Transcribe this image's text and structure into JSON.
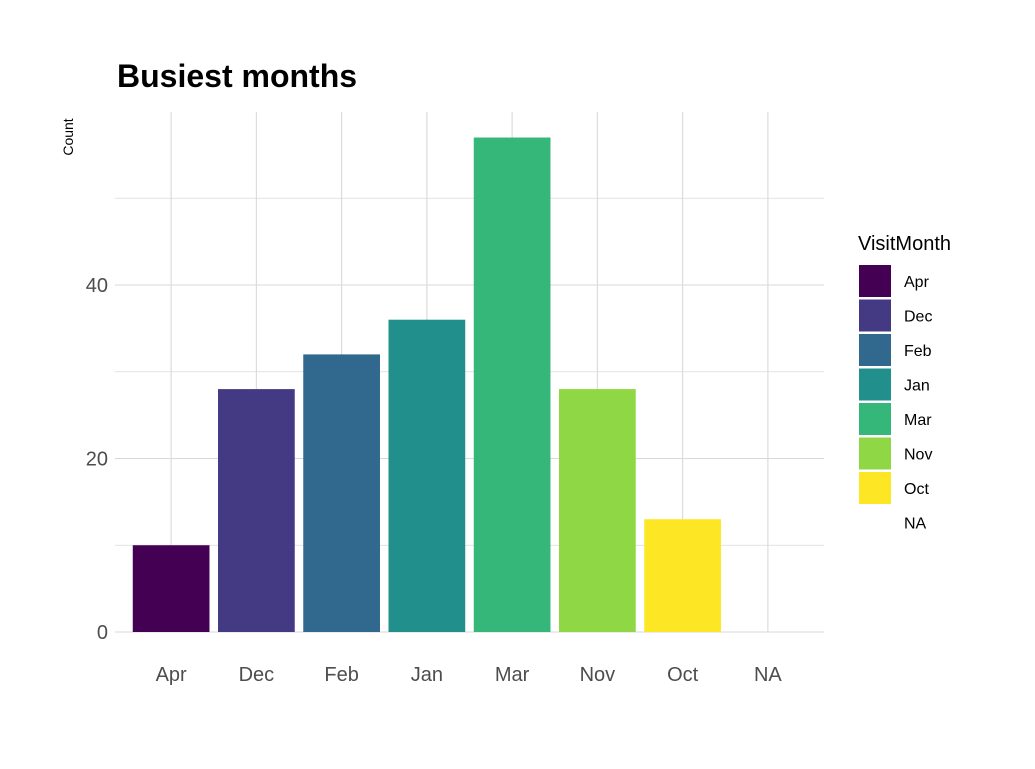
{
  "chart_data": {
    "type": "bar",
    "title": "Busiest months",
    "xlabel": "",
    "ylabel": "Count",
    "categories": [
      "Apr",
      "Dec",
      "Feb",
      "Jan",
      "Mar",
      "Nov",
      "Oct",
      "NA"
    ],
    "values": [
      10,
      28,
      32,
      36,
      57,
      28,
      13,
      0
    ],
    "ylim": [
      0,
      60
    ],
    "yticks": [
      0,
      20,
      40
    ],
    "colors": [
      "#440154",
      "#443A83",
      "#31688E",
      "#21908C",
      "#35B779",
      "#8FD744",
      "#FDE725",
      null
    ],
    "grid": true,
    "legend": {
      "title": "VisitMonth",
      "placement": "right",
      "entries": [
        "Apr",
        "Dec",
        "Feb",
        "Jan",
        "Mar",
        "Nov",
        "Oct",
        "NA"
      ]
    }
  }
}
